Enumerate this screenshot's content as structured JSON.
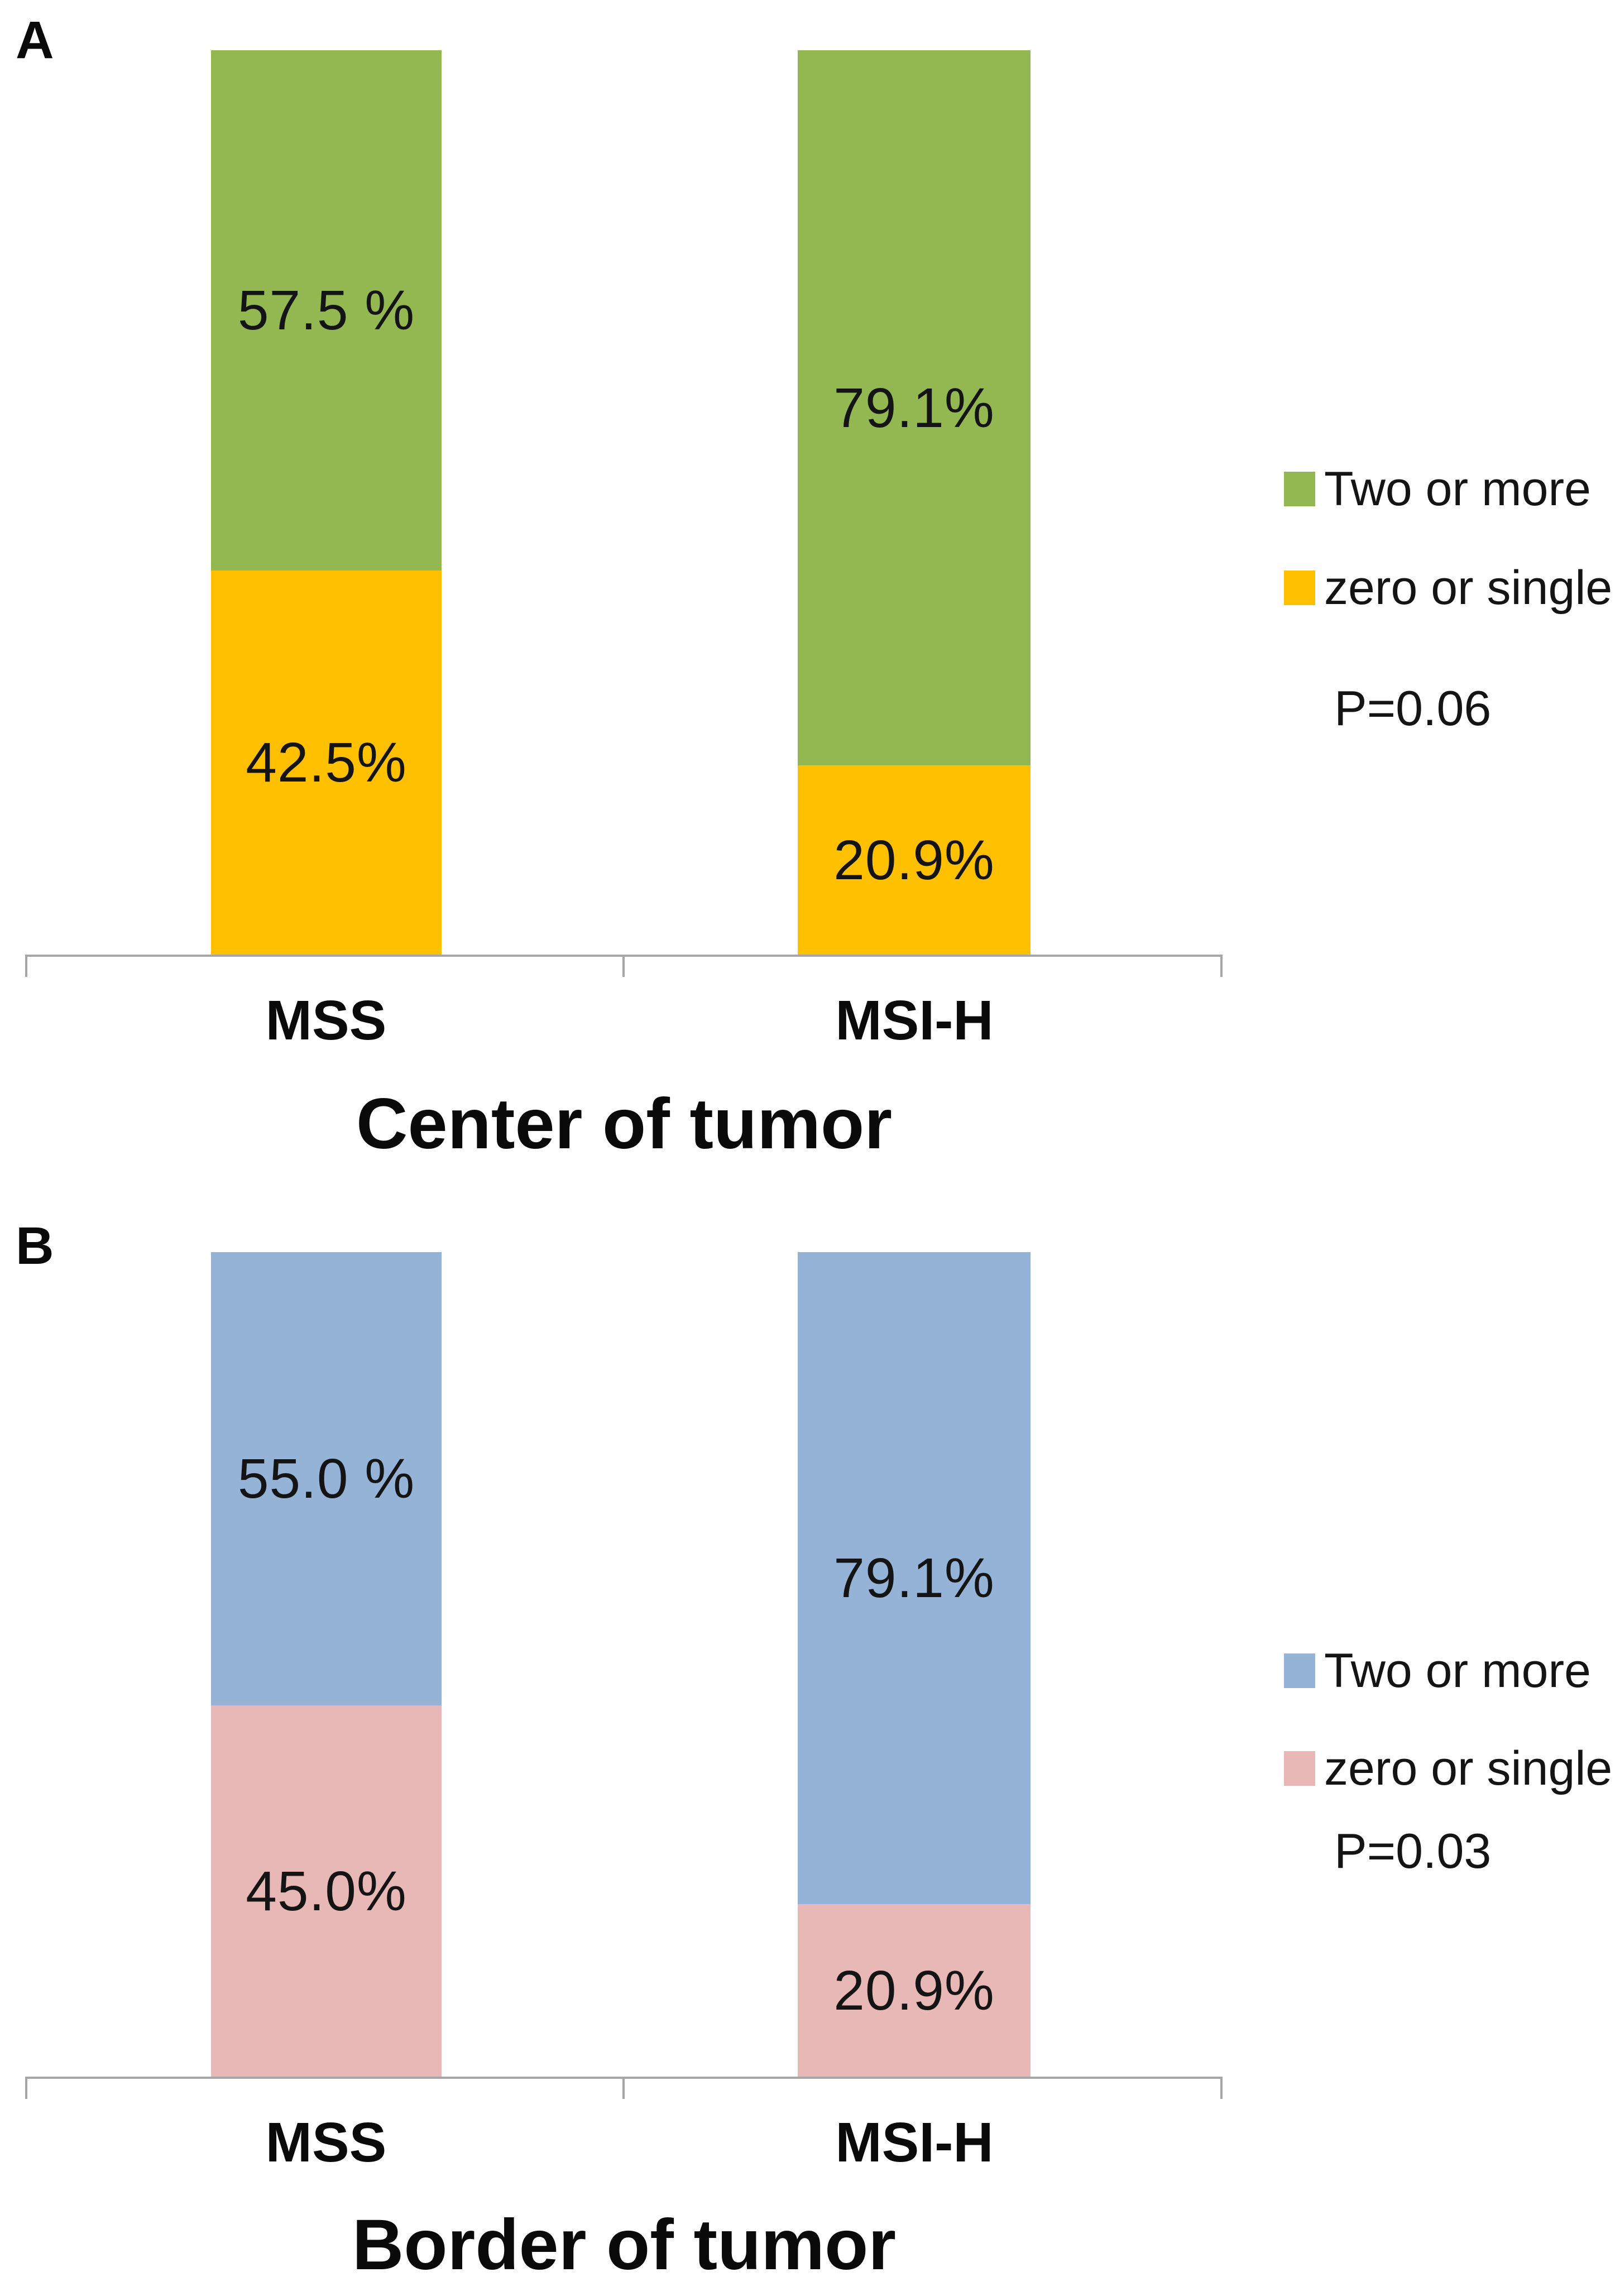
{
  "figure": {
    "background_color": "#FFFFFF",
    "axis_color": "#A6A6A6",
    "text_color": "#141414"
  },
  "chart_data": [
    {
      "type": "bar",
      "subtype": "stacked-percentage",
      "panel_label": "A",
      "title": "Center of tumor",
      "categories": [
        "MSS",
        "MSI-H"
      ],
      "series": [
        {
          "name": "Two or more",
          "color": "#94B851",
          "values": [
            57.5,
            79.1
          ],
          "data_labels": [
            "57.5 %",
            "79.1%"
          ]
        },
        {
          "name": "zero or single",
          "color": "#FFC000",
          "values": [
            42.5,
            20.9
          ],
          "data_labels": [
            "42.5%",
            "20.9%"
          ]
        }
      ],
      "stack_order_top_to_bottom": [
        "Two or more",
        "zero or single"
      ],
      "p_value_label": "P=0.06",
      "ylim": [
        0,
        100
      ],
      "y_axis_visible": false,
      "grid": false,
      "legend_position": "right"
    },
    {
      "type": "bar",
      "subtype": "stacked-percentage",
      "panel_label": "B",
      "title": "Border of tumor",
      "categories": [
        "MSS",
        "MSI-H"
      ],
      "series": [
        {
          "name": "Two or more",
          "color": "#95B3D7",
          "values": [
            55.0,
            79.1
          ],
          "data_labels": [
            "55.0 %",
            "79.1%"
          ]
        },
        {
          "name": "zero or single",
          "color": "#E7B8B5",
          "values": [
            45.0,
            20.9
          ],
          "data_labels": [
            "45.0%",
            "20.9%"
          ]
        }
      ],
      "stack_order_top_to_bottom": [
        "Two or more",
        "zero or single"
      ],
      "p_value_label": "P=0.03",
      "ylim": [
        0,
        100
      ],
      "y_axis_visible": false,
      "grid": false,
      "legend_position": "right"
    }
  ]
}
